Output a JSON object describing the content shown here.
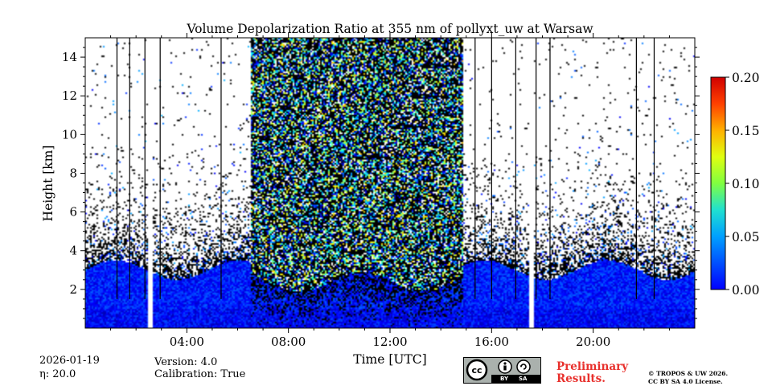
{
  "footer": {
    "date": "2026-01-19",
    "eta": "η: 20.0",
    "version": "Version: 4.0",
    "calibration": "Calibration: True",
    "preliminary_line1": "Preliminary",
    "preliminary_line2": "Results.",
    "copyright_line1": "© TROPOS & UW 2026.",
    "copyright_line2": "CC BY SA 4.0 License.",
    "license_badge_by": "BY",
    "license_badge_sa": "SA",
    "license_badge_cc": "cc"
  },
  "chart_data": {
    "type": "heatmap",
    "title": "Volume Depolarization Ratio at 355 nm of pollyxt_uw at Warsaw",
    "xlabel": "Time [UTC]",
    "ylabel": "Height [km]",
    "xlim_hours": [
      0,
      24
    ],
    "ylim_km": [
      0,
      15
    ],
    "x_ticks": [
      {
        "value": 4,
        "label": "04:00"
      },
      {
        "value": 8,
        "label": "08:00"
      },
      {
        "value": 12,
        "label": "12:00"
      },
      {
        "value": 16,
        "label": "16:00"
      },
      {
        "value": 20,
        "label": "20:00"
      }
    ],
    "y_ticks": [
      {
        "value": 2,
        "label": "2"
      },
      {
        "value": 4,
        "label": "4"
      },
      {
        "value": 6,
        "label": "6"
      },
      {
        "value": 8,
        "label": "8"
      },
      {
        "value": 10,
        "label": "10"
      },
      {
        "value": 12,
        "label": "12"
      },
      {
        "value": 14,
        "label": "14"
      }
    ],
    "colorbar": {
      "range": [
        0.0,
        0.2
      ],
      "colormap": "jet",
      "ticks": [
        {
          "value": 0.0,
          "label": "0.00"
        },
        {
          "value": 0.05,
          "label": "0.05"
        },
        {
          "value": 0.1,
          "label": "0.10"
        },
        {
          "value": 0.15,
          "label": "0.15"
        },
        {
          "value": 0.2,
          "label": "0.20"
        }
      ]
    },
    "data_gaps_hours": [
      [
        2.5,
        2.65
      ],
      [
        17.5,
        17.65
      ]
    ],
    "noisy_daytime_hours": [
      6.5,
      14.9
    ],
    "dense_signal_top_km": 3.0,
    "typical_low_level_value": 0.03,
    "vertical_lines_hours": [
      1.25,
      1.75,
      2.35,
      2.95,
      5.35,
      15.35,
      16.0,
      16.95,
      17.75,
      18.3,
      21.7,
      22.4
    ]
  }
}
